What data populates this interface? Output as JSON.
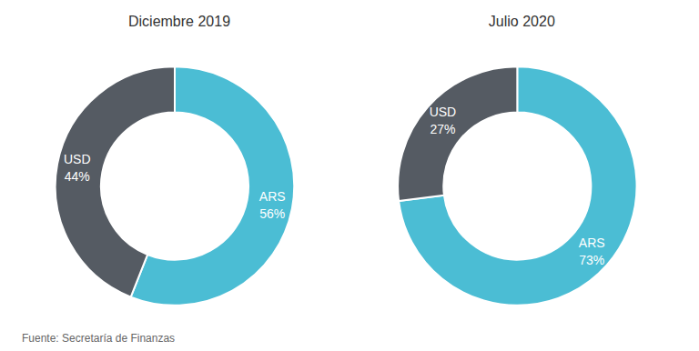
{
  "chart_data": [
    {
      "type": "pie",
      "title": "Diciembre 2019",
      "categories": [
        "ARS",
        "USD"
      ],
      "values": [
        56,
        44
      ],
      "value_labels": [
        "ARS\n56%",
        "USD\n44%"
      ],
      "colors": [
        "#4BBDD4",
        "#555B63"
      ],
      "annotation": "Fuente: Secretaría de Finanzas"
    },
    {
      "type": "pie",
      "title": "Julio 2020",
      "categories": [
        "ARS",
        "USD"
      ],
      "values": [
        73,
        27
      ],
      "value_labels": [
        "ARS\n73%",
        "USD\n27%"
      ],
      "colors": [
        "#4BBDD4",
        "#555B63"
      ]
    }
  ]
}
